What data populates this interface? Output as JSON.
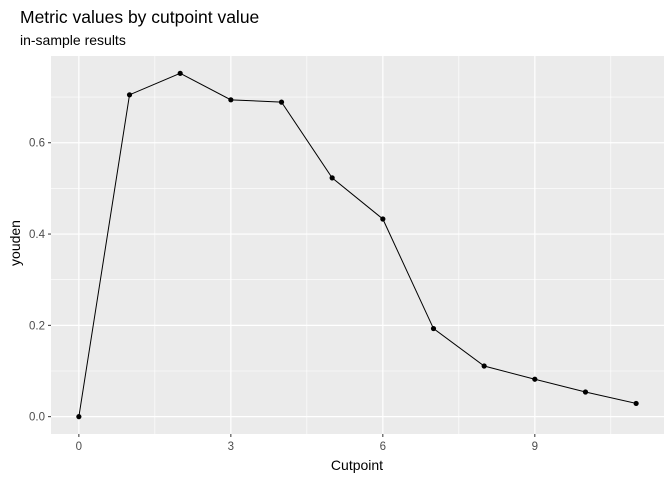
{
  "chart_data": {
    "type": "line",
    "title": "Metric values by cutpoint value",
    "subtitle": "in-sample results",
    "xlabel": "Cutpoint",
    "ylabel": "youden",
    "xlim": [
      -0.55,
      11.55
    ],
    "ylim": [
      -0.038,
      0.79
    ],
    "x_ticks": [
      0,
      3,
      6,
      9
    ],
    "x_minor_ticks": [
      1.5,
      4.5,
      7.5,
      10.5
    ],
    "y_ticks": [
      0.0,
      0.2,
      0.4,
      0.6
    ],
    "y_tick_labels": [
      "0.0",
      "0.2",
      "0.4",
      "0.6"
    ],
    "y_minor_ticks": [
      0.1,
      0.3,
      0.5,
      0.7
    ],
    "grid": true,
    "series": [
      {
        "x": [
          0,
          1,
          2,
          3,
          4,
          5,
          6,
          7,
          8,
          9,
          10,
          11
        ],
        "y": [
          0.0,
          0.705,
          0.752,
          0.694,
          0.689,
          0.523,
          0.433,
          0.193,
          0.111,
          0.082,
          0.054,
          0.029
        ]
      }
    ],
    "colors": {
      "panel": "#ebebeb",
      "grid": "#ffffff",
      "line": "#000000",
      "point": "#000000"
    }
  }
}
